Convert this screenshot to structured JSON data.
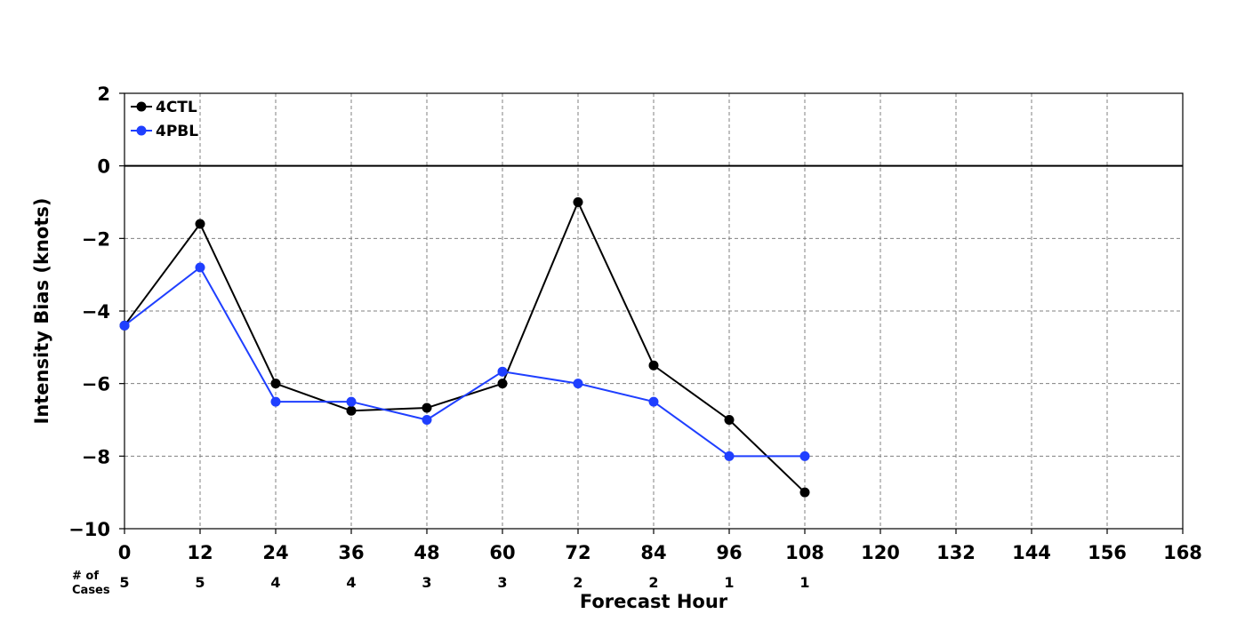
{
  "chart_data": {
    "type": "line",
    "title": "",
    "xlabel": "Forecast Hour",
    "ylabel": "Intensity Bias (knots)",
    "xlim": [
      0,
      168
    ],
    "ylim": [
      -10,
      2
    ],
    "x_ticks": [
      0,
      12,
      24,
      36,
      48,
      60,
      72,
      84,
      96,
      108,
      120,
      132,
      144,
      156,
      168
    ],
    "y_ticks": [
      2,
      0,
      -2,
      -4,
      -6,
      -8,
      -10
    ],
    "y_tick_labels": [
      "2",
      "0",
      "−2",
      "−4",
      "−6",
      "−8",
      "−10"
    ],
    "grid": true,
    "zero_line": true,
    "legend_position": "top-left",
    "series": [
      {
        "name": "4CTL",
        "color": "#000000",
        "x": [
          0,
          12,
          24,
          36,
          48,
          60,
          72,
          84,
          96,
          108
        ],
        "y": [
          -4.4,
          -1.6,
          -6.0,
          -6.75,
          -6.67,
          -6.0,
          -1.0,
          -5.5,
          -7.0,
          -9.0
        ]
      },
      {
        "name": "4PBL",
        "color": "#1f3fff",
        "x": [
          0,
          12,
          24,
          36,
          48,
          60,
          72,
          84,
          96,
          108
        ],
        "y": [
          -4.4,
          -2.8,
          -6.5,
          -6.5,
          -7.0,
          -5.67,
          -6.0,
          -6.5,
          -8.0,
          -8.0
        ]
      }
    ],
    "cases_label_line1": "# of",
    "cases_label_line2": "Cases",
    "cases": [
      {
        "x": 0,
        "n": "5"
      },
      {
        "x": 12,
        "n": "5"
      },
      {
        "x": 24,
        "n": "4"
      },
      {
        "x": 36,
        "n": "4"
      },
      {
        "x": 48,
        "n": "3"
      },
      {
        "x": 60,
        "n": "3"
      },
      {
        "x": 72,
        "n": "2"
      },
      {
        "x": 84,
        "n": "2"
      },
      {
        "x": 96,
        "n": "1"
      },
      {
        "x": 108,
        "n": "1"
      }
    ]
  }
}
